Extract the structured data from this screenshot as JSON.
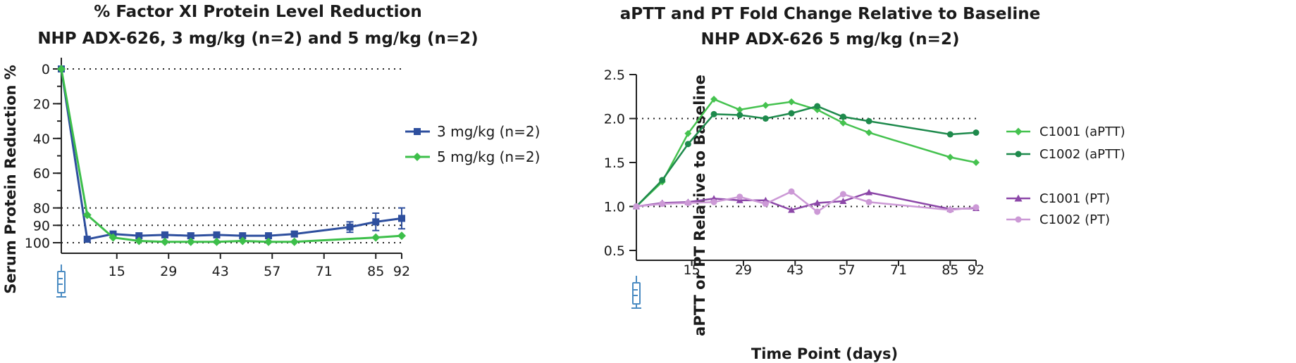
{
  "chart_data": [
    {
      "type": "line",
      "title": "% Factor XI Protein Level Reduction",
      "subtitle": "NHP ADX-626, 3 mg/kg (n=2) and 5 mg/kg (n=2)",
      "xlabel": "",
      "ylabel": "Serum Protein Reduction %",
      "xlim": [
        0,
        92
      ],
      "ylim": [
        0,
        100
      ],
      "y_inverted": true,
      "x_ticks": [
        15,
        29,
        43,
        57,
        71,
        85,
        92
      ],
      "y_ticks": [
        0,
        20,
        40,
        60,
        80,
        90,
        100
      ],
      "reference_lines_y": [
        0,
        80,
        90,
        100
      ],
      "legend_position": "right",
      "series": [
        {
          "name": "3 mg/kg (n=2)",
          "color": "#2e4f9e",
          "marker": "square",
          "x": [
            0,
            7,
            14,
            21,
            28,
            35,
            42,
            49,
            56,
            63,
            78,
            85,
            92
          ],
          "y": [
            0,
            98,
            95,
            96,
            95.5,
            96,
            95.5,
            96,
            96,
            95,
            91,
            88,
            86
          ],
          "error": [
            0,
            0,
            0,
            0,
            0,
            1.5,
            0,
            0,
            1.5,
            1.5,
            3,
            5,
            6
          ]
        },
        {
          "name": "5 mg/kg (n=2)",
          "color": "#3dbf4a",
          "marker": "diamond",
          "x": [
            0,
            7,
            14,
            21,
            28,
            35,
            42,
            49,
            56,
            63,
            85,
            92
          ],
          "y": [
            0,
            84,
            97,
            99,
            99.5,
            99.5,
            99.5,
            99,
            99.5,
            99.5,
            97,
            96
          ]
        }
      ]
    },
    {
      "type": "line",
      "title": "aPTT and PT Fold Change Relative to Baseline",
      "subtitle": "NHP ADX-626 5 mg/kg (n=2)",
      "xlabel": "Time Point (days)",
      "ylabel": "aPTT or PT Relative to Baseline",
      "xlim": [
        0,
        92
      ],
      "ylim": [
        0.5,
        2.5
      ],
      "x_ticks": [
        15,
        29,
        43,
        57,
        71,
        85,
        92
      ],
      "y_ticks": [
        "0.5",
        "1.0",
        "1.5",
        "2.0",
        "2.5"
      ],
      "reference_lines_y": [
        1.0,
        2.0
      ],
      "legend_position": "right",
      "series": [
        {
          "name": "C1001 (aPTT)",
          "color": "#45c24f",
          "marker": "diamond",
          "x": [
            0,
            7,
            14,
            21,
            28,
            35,
            42,
            49,
            56,
            63,
            85,
            92
          ],
          "y": [
            1.0,
            1.28,
            1.83,
            2.22,
            2.1,
            2.15,
            2.19,
            2.1,
            1.95,
            1.84,
            1.56,
            1.5
          ]
        },
        {
          "name": "C1002 (aPTT)",
          "color": "#1e8a4c",
          "marker": "circle",
          "x": [
            0,
            7,
            14,
            21,
            28,
            35,
            42,
            49,
            56,
            63,
            85,
            92
          ],
          "y": [
            1.0,
            1.3,
            1.71,
            2.05,
            2.04,
            2.0,
            2.06,
            2.14,
            2.02,
            1.97,
            1.82,
            1.84
          ]
        },
        {
          "name": "C1001 (PT)",
          "color": "#8c47a8",
          "marker": "triangle",
          "x": [
            0,
            7,
            14,
            21,
            28,
            35,
            42,
            49,
            56,
            63,
            85,
            92
          ],
          "y": [
            1.0,
            1.04,
            1.05,
            1.09,
            1.07,
            1.07,
            0.96,
            1.04,
            1.06,
            1.16,
            0.97,
            0.98
          ]
        },
        {
          "name": "C1002 (PT)",
          "color": "#cc99d6",
          "marker": "circle",
          "x": [
            0,
            7,
            14,
            21,
            28,
            35,
            42,
            49,
            56,
            63,
            85,
            92
          ],
          "y": [
            1.0,
            1.03,
            1.04,
            1.05,
            1.11,
            1.03,
            1.17,
            0.94,
            1.14,
            1.05,
            0.96,
            0.99
          ]
        }
      ]
    }
  ],
  "icons": {
    "dose_marker": "syringe-icon",
    "dose_color": "#4a8bc2"
  }
}
